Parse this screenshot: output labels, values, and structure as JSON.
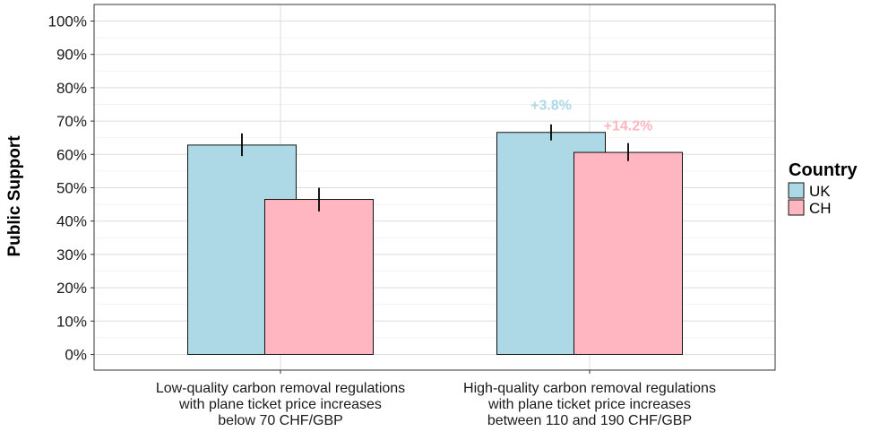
{
  "chart_data": {
    "type": "bar",
    "ylabel": "Public Support",
    "ylim": [
      0,
      100
    ],
    "yticks": [
      0,
      10,
      20,
      30,
      40,
      50,
      60,
      70,
      80,
      90,
      100
    ],
    "ytick_labels": [
      "0%",
      "10%",
      "20%",
      "30%",
      "40%",
      "50%",
      "60%",
      "70%",
      "80%",
      "90%",
      "100%"
    ],
    "grid": true,
    "legend_position": "right",
    "legend_title": "Country",
    "categories": [
      [
        "Low-quality carbon removal regulations",
        "with plane ticket price increases",
        "below 70 CHF/GBP"
      ],
      [
        "High-quality carbon removal regulations",
        "with plane ticket price increases",
        "between 110 and 190 CHF/GBP"
      ]
    ],
    "series": [
      {
        "name": "UK",
        "color": "#add8e6",
        "values": [
          62.8,
          66.6
        ],
        "err_low": [
          59.5,
          64.2
        ],
        "err_high": [
          66.3,
          69.0
        ]
      },
      {
        "name": "CH",
        "color": "#ffb6c1",
        "values": [
          46.5,
          60.6
        ],
        "err_low": [
          42.9,
          58.0
        ],
        "err_high": [
          50.0,
          63.4
        ]
      }
    ],
    "annotations": [
      {
        "text": "+3.8%",
        "category_index": 1,
        "series_index": 0,
        "y": 73.4,
        "color": "#add8e6"
      },
      {
        "text": "+14.2%",
        "category_index": 1,
        "series_index": 1,
        "y": 67.2,
        "color": "#ffb6c1"
      }
    ]
  }
}
